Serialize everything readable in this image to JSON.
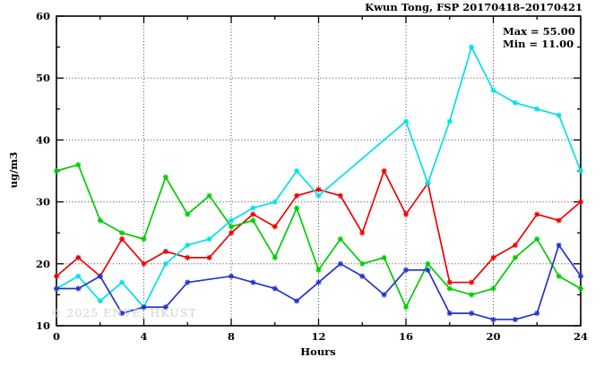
{
  "watermark": "© 2025 ENVE, HKUST",
  "chart_data": {
    "type": "line",
    "title": "Kwun Tong, FSP 20170418–20170421",
    "annotations": {
      "max": "Max = 55.00",
      "min": "Min = 11.00"
    },
    "max_value": 55.0,
    "min_value": 11.0,
    "xlabel": "Hours",
    "ylabel": "ug/m3",
    "xlim": [
      0,
      24
    ],
    "ylim": [
      10,
      60
    ],
    "x_major_ticks": [
      0,
      4,
      8,
      12,
      16,
      20,
      24
    ],
    "x_minor_ticks": [
      2,
      6,
      10,
      14,
      18,
      22
    ],
    "y_major_ticks": [
      10,
      20,
      30,
      40,
      50,
      60
    ],
    "y_minor_ticks": [
      15,
      25,
      35,
      45,
      55
    ],
    "grid_x": [
      4,
      8,
      12,
      16,
      20
    ],
    "grid_y": [
      20,
      30,
      40,
      50
    ],
    "grid_style": "dotted",
    "legend_position": "none",
    "x": [
      0,
      1,
      2,
      3,
      4,
      5,
      6,
      7,
      8,
      9,
      10,
      11,
      12,
      13,
      14,
      15,
      16,
      17,
      18,
      19,
      20,
      21,
      22,
      23,
      24
    ],
    "series": [
      {
        "name": "series-red",
        "color": "#ee0000",
        "values": [
          18,
          21,
          18,
          24,
          20,
          22,
          21,
          21,
          25,
          28,
          26,
          31,
          32,
          31,
          25,
          35,
          28,
          33,
          17,
          17,
          21,
          23,
          28,
          27,
          30
        ]
      },
      {
        "name": "series-green",
        "color": "#00cc00",
        "values": [
          35,
          36,
          27,
          25,
          24,
          34,
          28,
          31,
          26,
          27,
          21,
          29,
          19,
          24,
          20,
          21,
          13,
          20,
          16,
          15,
          16,
          21,
          24,
          18,
          16
        ]
      },
      {
        "name": "series-cyan",
        "color": "#00e0e6",
        "values": [
          16,
          18,
          14,
          17,
          13,
          20,
          23,
          24,
          27,
          29,
          30,
          35,
          31,
          null,
          null,
          null,
          43,
          33,
          43,
          55,
          48,
          46,
          45,
          44,
          35
        ]
      },
      {
        "name": "series-blue",
        "color": "#2233cc",
        "values": [
          16,
          16,
          18,
          12,
          13,
          13,
          17,
          null,
          18,
          17,
          16,
          14,
          17,
          20,
          18,
          15,
          19,
          19,
          12,
          12,
          11,
          11,
          12,
          23,
          18
        ]
      }
    ]
  }
}
